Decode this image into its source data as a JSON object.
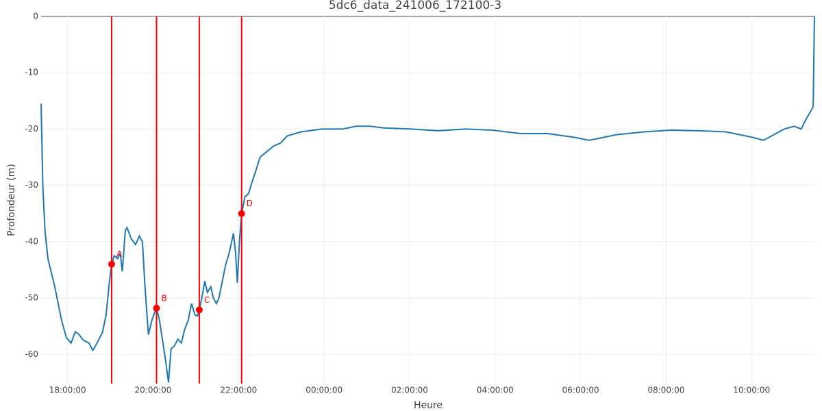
{
  "chart_data": {
    "type": "line",
    "title": "5dc6_data_241006_172100-3",
    "x_label": "Heure",
    "y_label": "Profondeur (m)",
    "xlim": [
      17.38,
      35.47
    ],
    "ylim": [
      -65.2,
      0
    ],
    "xticks": [
      {
        "value": 18,
        "label": "18:00:00"
      },
      {
        "value": 20,
        "label": "20:00:00"
      },
      {
        "value": 22,
        "label": "22:00:00"
      },
      {
        "value": 24,
        "label": "00:00:00"
      },
      {
        "value": 26,
        "label": "02:00:00"
      },
      {
        "value": 28,
        "label": "04:00:00"
      },
      {
        "value": 30,
        "label": "06:00:00"
      },
      {
        "value": 32,
        "label": "08:00:00"
      },
      {
        "value": 34,
        "label": "10:00:00"
      }
    ],
    "yticks": [
      0,
      -10,
      -20,
      -30,
      -40,
      -50,
      -60
    ],
    "grid": true,
    "series": [
      {
        "color": "#1f77b4",
        "x": [
          17.38,
          17.42,
          17.47,
          17.54,
          17.7,
          17.86,
          17.97,
          18.08,
          18.18,
          18.27,
          18.37,
          18.5,
          18.59,
          18.69,
          18.82,
          18.9,
          18.98,
          19.03,
          19.09,
          19.17,
          19.23,
          19.28,
          19.35,
          19.39,
          19.49,
          19.59,
          19.68,
          19.75,
          19.81,
          19.89,
          19.97,
          20.04,
          20.08,
          20.15,
          20.23,
          20.29,
          20.36,
          20.42,
          20.5,
          20.58,
          20.66,
          20.74,
          20.82,
          20.9,
          20.98,
          21.04,
          21.08,
          21.14,
          21.21,
          21.27,
          21.35,
          21.41,
          21.48,
          21.54,
          21.62,
          21.7,
          21.78,
          21.88,
          21.93,
          21.97,
          22.02,
          22.07,
          22.15,
          22.23,
          22.31,
          22.42,
          22.5,
          22.66,
          22.82,
          22.98,
          23.14,
          23.46,
          23.95,
          24.43,
          24.75,
          25.07,
          25.39,
          26.03,
          26.67,
          27.31,
          27.95,
          28.59,
          29.23,
          29.88,
          30.2,
          30.52,
          30.84,
          31.48,
          32.12,
          32.76,
          33.4,
          34.04,
          34.28,
          34.52,
          34.76,
          35.0,
          35.16,
          35.29,
          35.37,
          35.44,
          35.47
        ],
        "values": [
          -15.5,
          -30,
          -38,
          -43,
          -48,
          -54,
          -57,
          -58,
          -56,
          -56.5,
          -57.5,
          -58,
          -59.3,
          -58,
          -56,
          -53,
          -47,
          -44,
          -42.5,
          -43,
          -42,
          -45.3,
          -38,
          -37.5,
          -39.5,
          -40.5,
          -39,
          -40,
          -48,
          -56.5,
          -54,
          -52.5,
          -51.8,
          -54,
          -58,
          -61,
          -65,
          -59,
          -58.5,
          -57.3,
          -58,
          -55.5,
          -54,
          -51,
          -53,
          -53.2,
          -52.1,
          -50,
          -47,
          -49,
          -48,
          -50,
          -51,
          -50,
          -47,
          -44,
          -42,
          -38.5,
          -42,
          -47.3,
          -40,
          -35,
          -32,
          -31.5,
          -29.5,
          -27,
          -25,
          -24,
          -23,
          -22.5,
          -21.2,
          -20.5,
          -20,
          -20,
          -19.5,
          -19.5,
          -19.8,
          -20,
          -20.3,
          -20,
          -20.2,
          -20.8,
          -20.8,
          -21.5,
          -22,
          -21.5,
          -21,
          -20.5,
          -20.2,
          -20.3,
          -20.5,
          -21.5,
          -22,
          -21,
          -20,
          -19.5,
          -20,
          -18,
          -17,
          -16,
          0
        ]
      }
    ],
    "markers_color": "#ff0000",
    "markers": [
      {
        "label": "A",
        "x": 19.03,
        "y": -44
      },
      {
        "label": "B",
        "x": 20.08,
        "y": -51.8
      },
      {
        "label": "C",
        "x": 21.08,
        "y": -52.1
      },
      {
        "label": "D",
        "x": 22.07,
        "y": -35
      }
    ]
  }
}
